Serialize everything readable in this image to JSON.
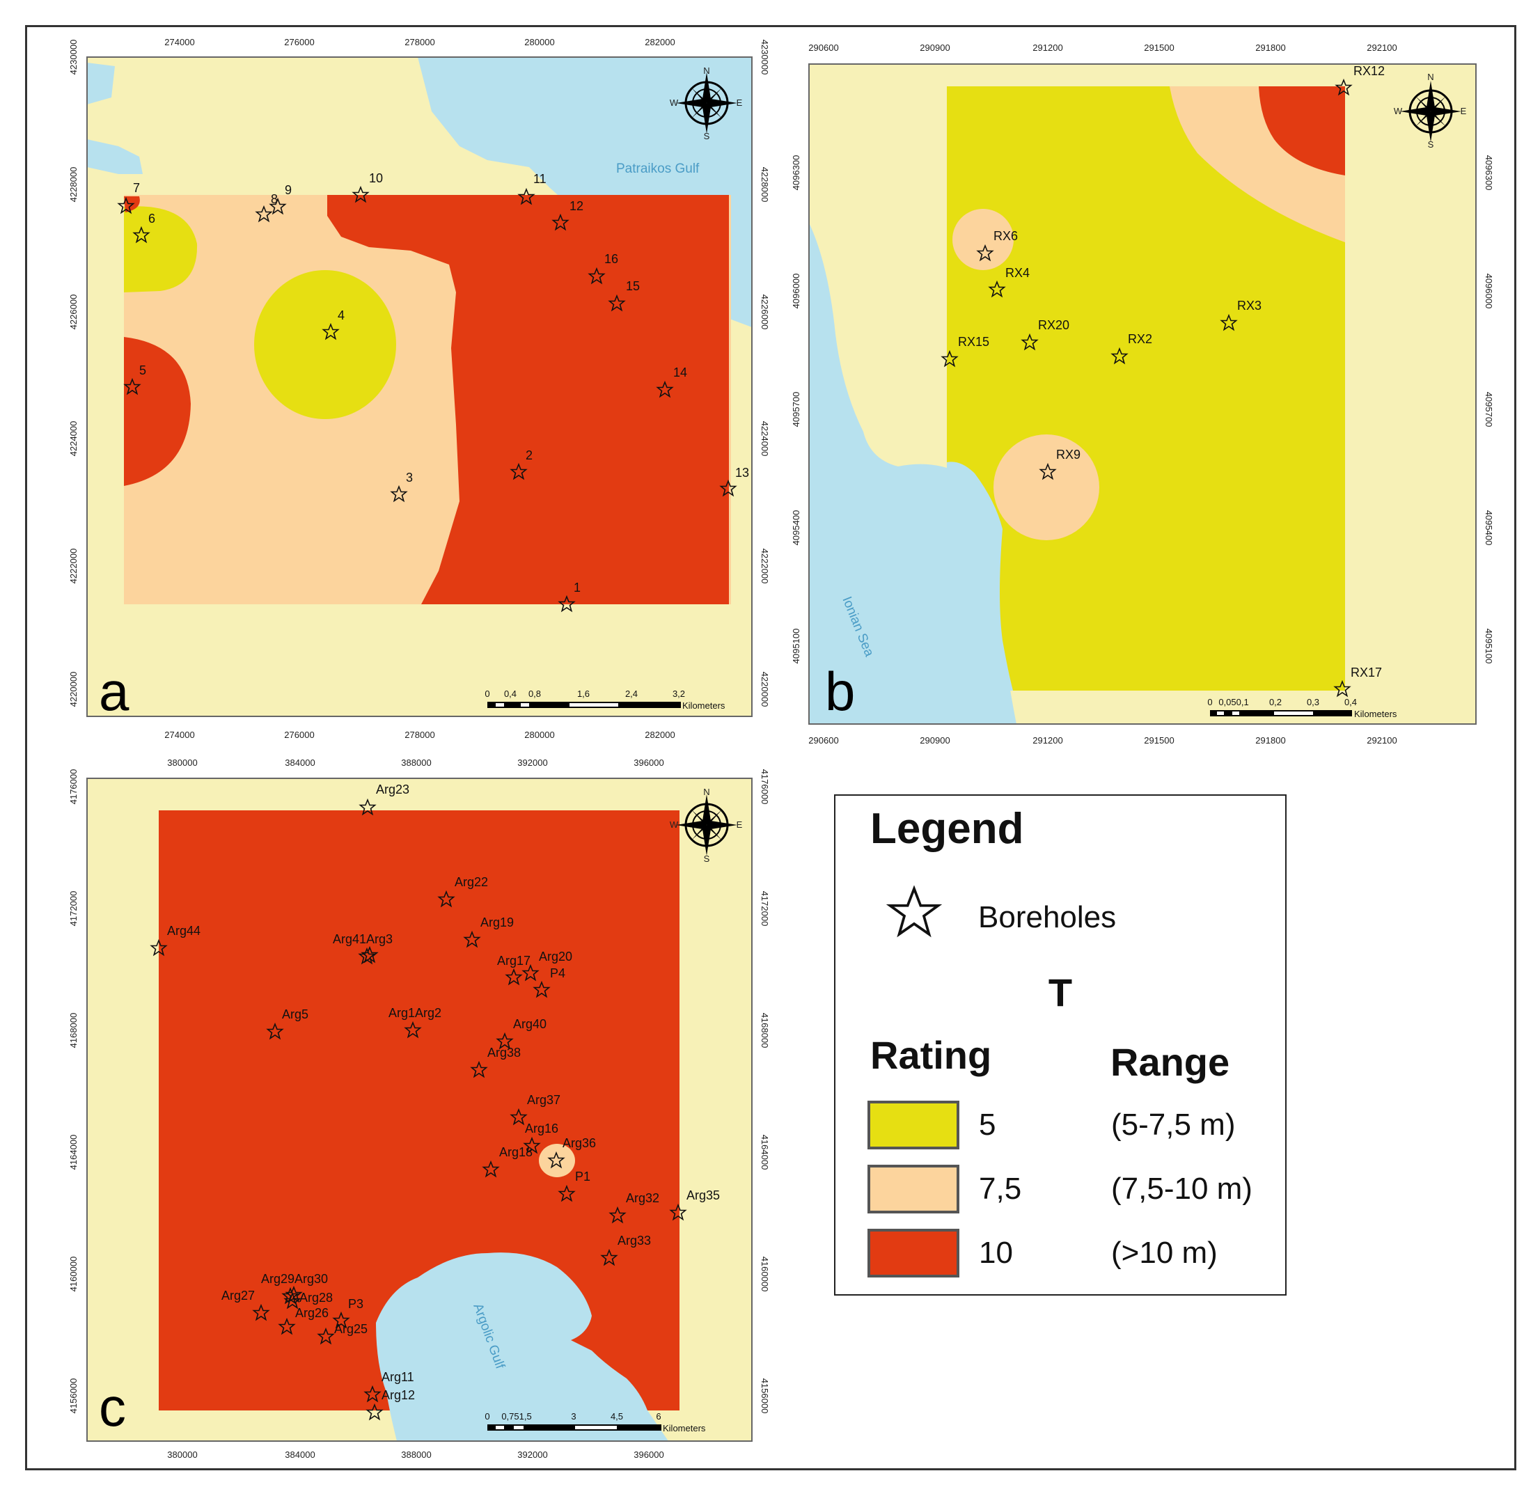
{
  "colors": {
    "land": "#f7f1b7",
    "sea": "#b7e1ee",
    "class_5": "#e6df12",
    "class_7_5": "#fcd49d",
    "class_10": "#e23b12",
    "frame": "#333333"
  },
  "panels": {
    "a": {
      "letter": "a",
      "x_ticks": [
        "274000",
        "276000",
        "278000",
        "280000",
        "282000"
      ],
      "y_ticks": [
        "4230000",
        "4228000",
        "4226000",
        "4224000",
        "4222000",
        "4220000"
      ],
      "sea_label": "Patraikos Gulf",
      "scale_labels": [
        "0",
        "0,4",
        "0,8",
        "1,6",
        "2,4",
        "3,2"
      ],
      "scale_unit": "Kilometers",
      "compass": [
        "N",
        "S",
        "W",
        "E"
      ],
      "boreholes": [
        "1",
        "2",
        "3",
        "4",
        "5",
        "6",
        "7",
        "8",
        "9",
        "10",
        "11",
        "12",
        "13",
        "14",
        "15",
        "16"
      ]
    },
    "b": {
      "letter": "b",
      "x_ticks": [
        "290600",
        "290900",
        "291200",
        "291500",
        "291800",
        "292100"
      ],
      "y_ticks": [
        "4096300",
        "4096000",
        "4095700",
        "4095400",
        "4095100"
      ],
      "sea_label": "Ionian Sea",
      "scale_labels": [
        "0",
        "0,050,1",
        "0,2",
        "0,3",
        "0,4"
      ],
      "scale_unit": "Kilometers",
      "compass": [
        "N",
        "S",
        "W",
        "E"
      ],
      "boreholes": [
        "RX12",
        "RX6",
        "RX4",
        "RX3",
        "RX20",
        "RX15",
        "RX2",
        "RX9",
        "RX17"
      ]
    },
    "c": {
      "letter": "c",
      "x_ticks": [
        "380000",
        "384000",
        "388000",
        "392000",
        "396000"
      ],
      "y_ticks": [
        "4176000",
        "4172000",
        "4168000",
        "4164000",
        "4160000",
        "4156000"
      ],
      "sea_label": "Argolic Gulf",
      "scale_labels": [
        "0",
        "0,751,5",
        "3",
        "4,5",
        "6"
      ],
      "scale_unit": "Kilometers",
      "compass": [
        "N",
        "S",
        "W",
        "E"
      ],
      "boreholes": [
        "Arg23",
        "Arg22",
        "Arg44",
        "Arg19",
        "Arg41Arg3",
        "Arg17",
        "Arg20",
        "P4",
        "Arg5",
        "Arg1Arg2",
        "Arg40",
        "Arg38",
        "Arg37",
        "Arg16",
        "Arg36",
        "Arg18",
        "P1",
        "Arg32",
        "Arg35",
        "Arg33",
        "Arg29Arg30",
        "Arg27",
        "Arg28",
        "Arg26",
        "P3",
        "Arg25",
        "Arg11",
        "Arg12"
      ]
    }
  },
  "legend": {
    "title": "Legend",
    "boreholes_label": "Boreholes",
    "parameter": "T",
    "rating_header": "Rating",
    "range_header": "Range",
    "items": [
      {
        "rating": "5",
        "range": "(5-7,5 m)",
        "color": "#e6df12"
      },
      {
        "rating": "7,5",
        "range": "(7,5-10 m)",
        "color": "#fcd49d"
      },
      {
        "rating": "10",
        "range": "(>10 m)",
        "color": "#e23b12"
      }
    ]
  }
}
